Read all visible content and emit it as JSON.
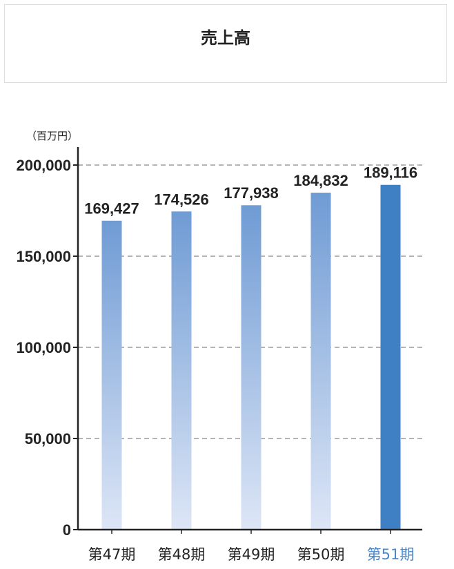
{
  "chart_data": {
    "type": "bar",
    "title": "売上高",
    "unit_label": "（百万円）",
    "categories": [
      "第47期",
      "第48期",
      "第49期",
      "第50期",
      "第51期"
    ],
    "values": [
      169427,
      174526,
      177938,
      184832,
      189116
    ],
    "value_labels": [
      "169,427",
      "174,526",
      "177,938",
      "184,832",
      "189,116"
    ],
    "ylim": [
      0,
      200000
    ],
    "yticks": [
      0,
      50000,
      100000,
      150000,
      200000
    ],
    "ytick_labels": [
      "0",
      "50,000",
      "100,000",
      "150,000",
      "200,000"
    ],
    "grid": "dashed-horizontal",
    "highlight_index": 4,
    "colors": {
      "bar_top": "#6f9bd4",
      "bar_bottom": "#dde6f6",
      "highlight_bar": "#3f7fc4",
      "highlight_label": "#4a86c8",
      "grid": "#888888",
      "axis": "#222222"
    }
  }
}
